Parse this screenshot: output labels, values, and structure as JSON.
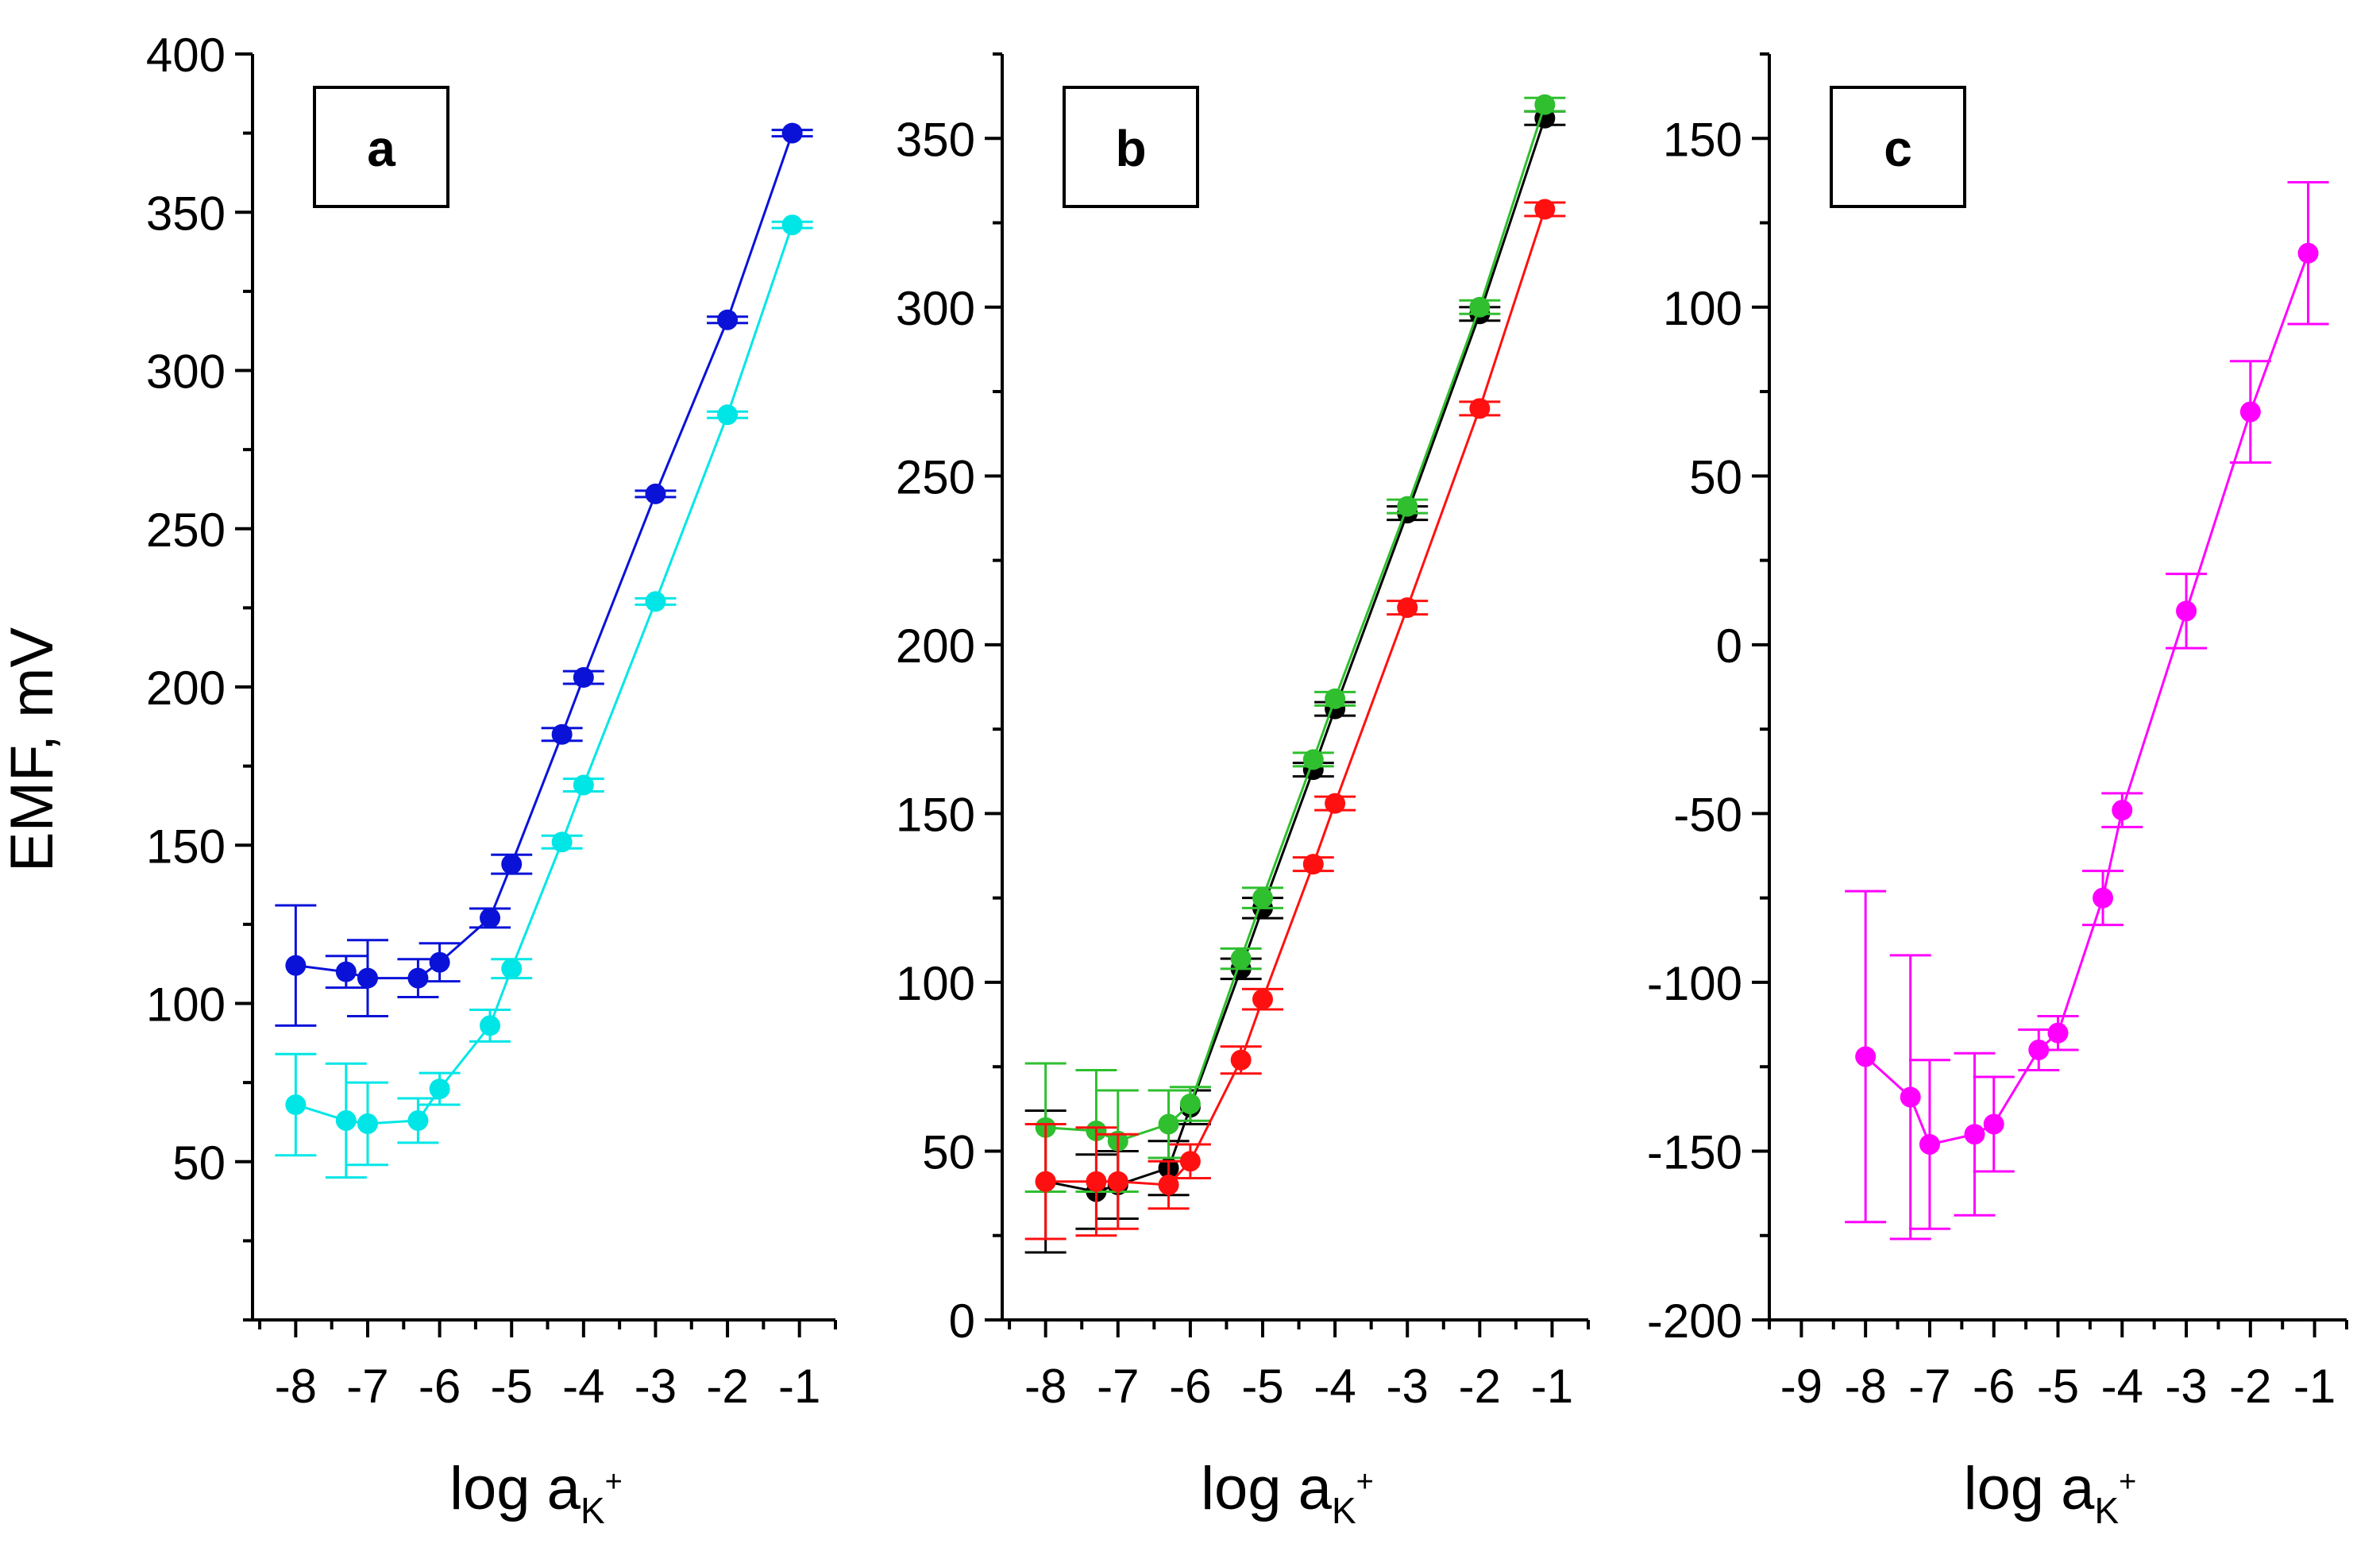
{
  "figure": {
    "ylabel": "EMF, mV",
    "xlabel_main": "log a",
    "xlabel_sub": "K",
    "xlabel_sup": "+"
  },
  "chart_data": [
    {
      "type": "scatter",
      "panel_label": "a",
      "ylabel": "EMF, mV",
      "xlabel": "log aK+",
      "xlim": [
        -8.6,
        -0.5
      ],
      "ylim": [
        0,
        400
      ],
      "xticks": [
        -8,
        -7,
        -6,
        -5,
        -4,
        -3,
        -2,
        -1
      ],
      "yticks": [
        50,
        100,
        150,
        200,
        250,
        300,
        350,
        400
      ],
      "grid": false,
      "series": [
        {
          "color": "#0a12d8",
          "x": [
            -8,
            -7.3,
            -7,
            -6.3,
            -6,
            -5.3,
            -5,
            -4.3,
            -4,
            -3,
            -2,
            -1.1
          ],
          "y": [
            112,
            110,
            108,
            108,
            113,
            127,
            144,
            185,
            203,
            261,
            316,
            375
          ],
          "err": [
            19,
            5,
            12,
            6,
            6,
            3,
            3,
            2,
            2,
            1,
            1,
            1
          ]
        },
        {
          "color": "#00e6e6",
          "x": [
            -8,
            -7.3,
            -7,
            -6.3,
            -6,
            -5.3,
            -5,
            -4.3,
            -4,
            -3,
            -2,
            -1.1
          ],
          "y": [
            68,
            63,
            62,
            63,
            73,
            93,
            111,
            151,
            169,
            227,
            286,
            346
          ],
          "err": [
            16,
            18,
            13,
            7,
            5,
            5,
            3,
            2,
            2,
            1,
            1,
            1
          ]
        }
      ]
    },
    {
      "type": "scatter",
      "panel_label": "b",
      "xlabel": "log aK+",
      "xlim": [
        -8.6,
        -0.5
      ],
      "ylim": [
        0,
        375
      ],
      "xticks": [
        -8,
        -7,
        -6,
        -5,
        -4,
        -3,
        -2,
        -1
      ],
      "yticks": [
        0,
        50,
        100,
        150,
        200,
        250,
        300,
        350
      ],
      "grid": false,
      "series": [
        {
          "color": "#000000",
          "x": [
            -8,
            -7.3,
            -7,
            -6.3,
            -6,
            -5.3,
            -5,
            -4.3,
            -4,
            -3,
            -2,
            -1.1
          ],
          "y": [
            41,
            38,
            40,
            45,
            63,
            104,
            122,
            163,
            181,
            239,
            298,
            356
          ],
          "err": [
            21,
            11,
            10,
            8,
            5,
            3,
            3,
            2,
            2,
            2,
            2,
            2
          ]
        },
        {
          "color": "#2fbf2f",
          "x": [
            -8,
            -7.3,
            -7,
            -6.3,
            -6,
            -5.3,
            -5,
            -4.3,
            -4,
            -3,
            -2,
            -1.1
          ],
          "y": [
            57,
            56,
            53,
            58,
            64,
            107,
            125,
            166,
            184,
            241,
            300,
            360
          ],
          "err": [
            19,
            18,
            15,
            10,
            5,
            3,
            3,
            2,
            2,
            2,
            2,
            2
          ]
        },
        {
          "color": "#ff1010",
          "x": [
            -8,
            -7.3,
            -7,
            -6.3,
            -6,
            -5.3,
            -5,
            -4.3,
            -4,
            -3,
            -2,
            -1.1
          ],
          "y": [
            41,
            41,
            41,
            40,
            47,
            77,
            95,
            135,
            153,
            211,
            270,
            329
          ],
          "err": [
            17,
            16,
            14,
            7,
            5,
            4,
            3,
            2,
            2,
            2,
            2,
            2
          ]
        }
      ]
    },
    {
      "type": "scatter",
      "panel_label": "c",
      "xlabel": "log aK+",
      "xlim": [
        -9,
        -0.5
      ],
      "ylim": [
        -200,
        175
      ],
      "xticks": [
        -9,
        -8,
        -7,
        -6,
        -5,
        -4,
        -3,
        -2,
        -1
      ],
      "yticks": [
        -200,
        -150,
        -100,
        -50,
        0,
        50,
        100,
        150
      ],
      "grid": false,
      "series": [
        {
          "color": "#ff00ff",
          "x": [
            -8,
            -7.3,
            -7,
            -6.3,
            -6,
            -5.3,
            -5,
            -4.3,
            -4,
            -3,
            -2,
            -1.1
          ],
          "y": [
            -122,
            -134,
            -148,
            -145,
            -142,
            -120,
            -115,
            -75,
            -49,
            10,
            69,
            116
          ],
          "err": [
            49,
            42,
            25,
            24,
            14,
            6,
            5,
            8,
            5,
            11,
            15,
            21
          ]
        }
      ]
    }
  ]
}
